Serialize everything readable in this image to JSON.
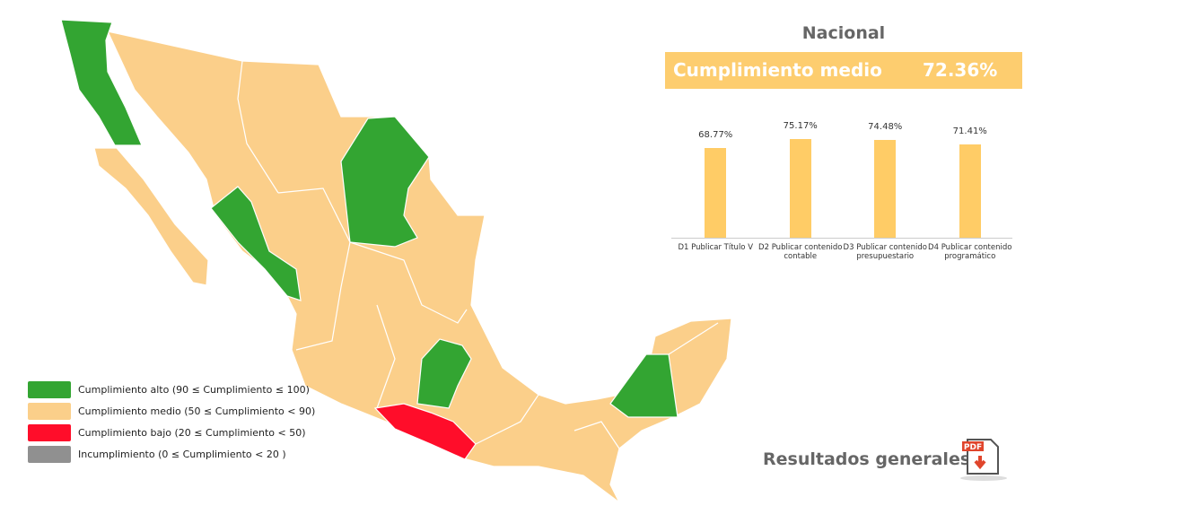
{
  "legend": [
    {
      "label": "Cumplimiento alto (90 ≤ Cumplimiento ≤ 100)",
      "color": "#33a532"
    },
    {
      "label": "Cumplimiento medio (50 ≤ Cumplimiento  < 90)",
      "color": "#fbcf8a"
    },
    {
      "label": "Cumplimiento bajo (20 ≤ Cumplimiento < 50)",
      "color": "#ff0d2a"
    },
    {
      "label": "Incumplimiento (0 ≤ Cumplimiento < 20 )",
      "color": "#909090"
    }
  ],
  "summary": {
    "label": "Cumplimiento medio",
    "value": "72.36%"
  },
  "chart_data": {
    "type": "bar",
    "title": "Nacional",
    "categories": [
      "D1 Publicar Título V",
      "D2 Publicar contenido contable",
      "D3 Publicar contenido presupuestario",
      "D4 Publicar contenido programático"
    ],
    "values": [
      68.77,
      75.17,
      74.48,
      71.41
    ],
    "value_labels": [
      "68.77%",
      "75.17%",
      "74.48%",
      "71.41%"
    ],
    "color": "#ffcc66"
  },
  "download": {
    "label": "Resultados generales",
    "icon_text": "PDF"
  }
}
